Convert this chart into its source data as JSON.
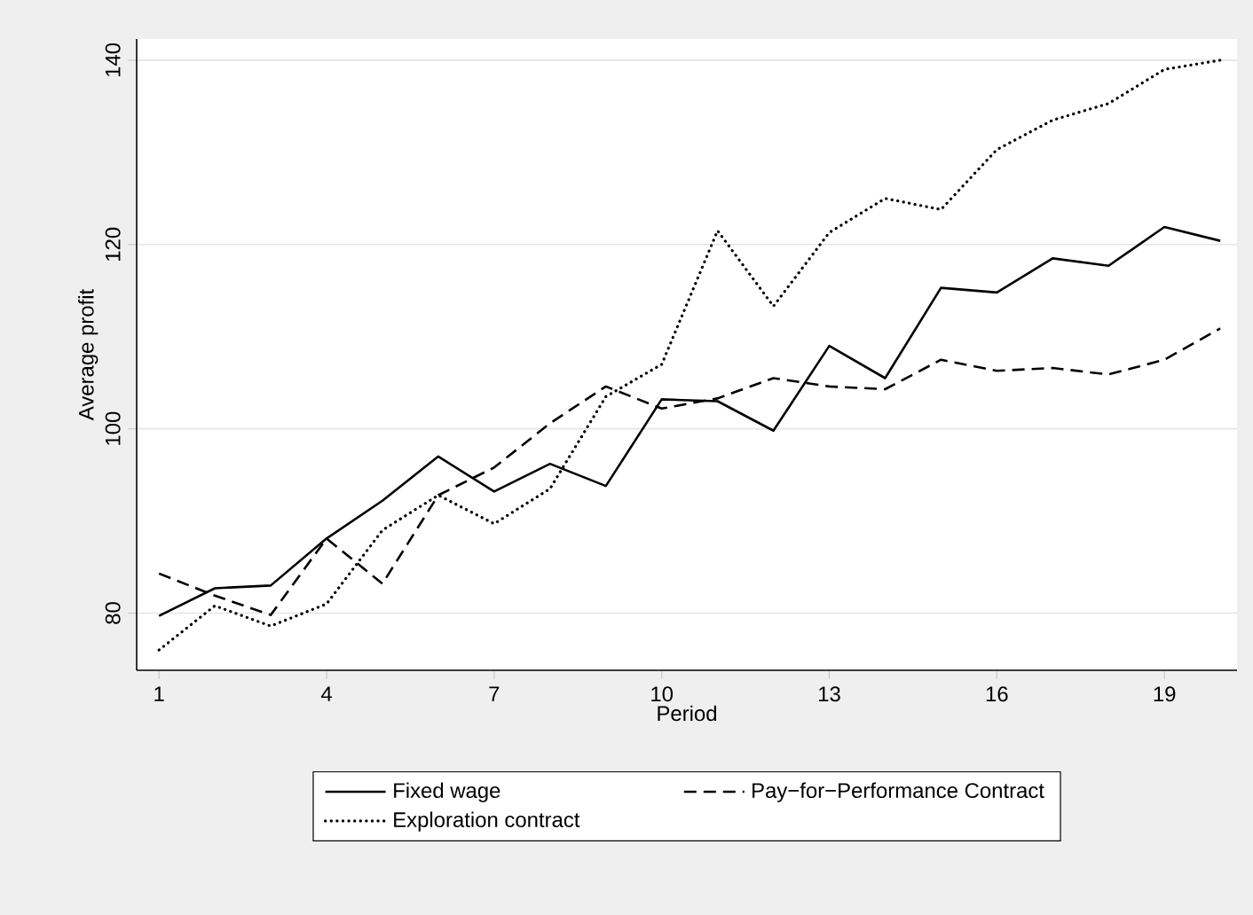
{
  "chart_data": {
    "type": "line",
    "xlabel": "Period",
    "ylabel": "Average profit",
    "x": [
      1,
      2,
      3,
      4,
      5,
      6,
      7,
      8,
      9,
      10,
      11,
      12,
      13,
      14,
      15,
      16,
      17,
      18,
      19,
      20
    ],
    "series": [
      {
        "name": "Fixed wage",
        "color": "#000000",
        "line_style": "solid",
        "values": [
          79.7,
          82.7,
          83.0,
          88.1,
          92.2,
          97.0,
          93.2,
          96.2,
          93.8,
          103.2,
          103.0,
          99.8,
          109.0,
          105.5,
          115.3,
          114.8,
          118.5,
          117.7,
          121.9,
          120.4
        ]
      },
      {
        "name": "Pay−for−Performance Contract",
        "color": "#000000",
        "line_style": "dashed",
        "values": [
          84.3,
          81.9,
          79.8,
          88.1,
          83.2,
          92.8,
          95.8,
          100.6,
          104.6,
          102.2,
          103.3,
          105.5,
          104.6,
          104.3,
          107.5,
          106.3,
          106.6,
          105.9,
          107.5,
          110.9
        ]
      },
      {
        "name": "Exploration contract",
        "color": "#000000",
        "line_style": "dotted",
        "values": [
          76.0,
          80.8,
          78.6,
          81.0,
          89.0,
          92.8,
          89.7,
          93.5,
          103.5,
          107.0,
          121.5,
          113.3,
          121.3,
          125.0,
          123.8,
          130.3,
          133.5,
          135.3,
          139.0,
          140.0
        ]
      }
    ],
    "xlim": [
      0.6,
      20.3
    ],
    "ylim": [
      73.8,
      142.3
    ],
    "xticks": [
      1,
      4,
      7,
      10,
      13,
      16,
      19
    ],
    "yticks": [
      80,
      100,
      120,
      140
    ],
    "grid": "y",
    "legend": "bottom"
  }
}
